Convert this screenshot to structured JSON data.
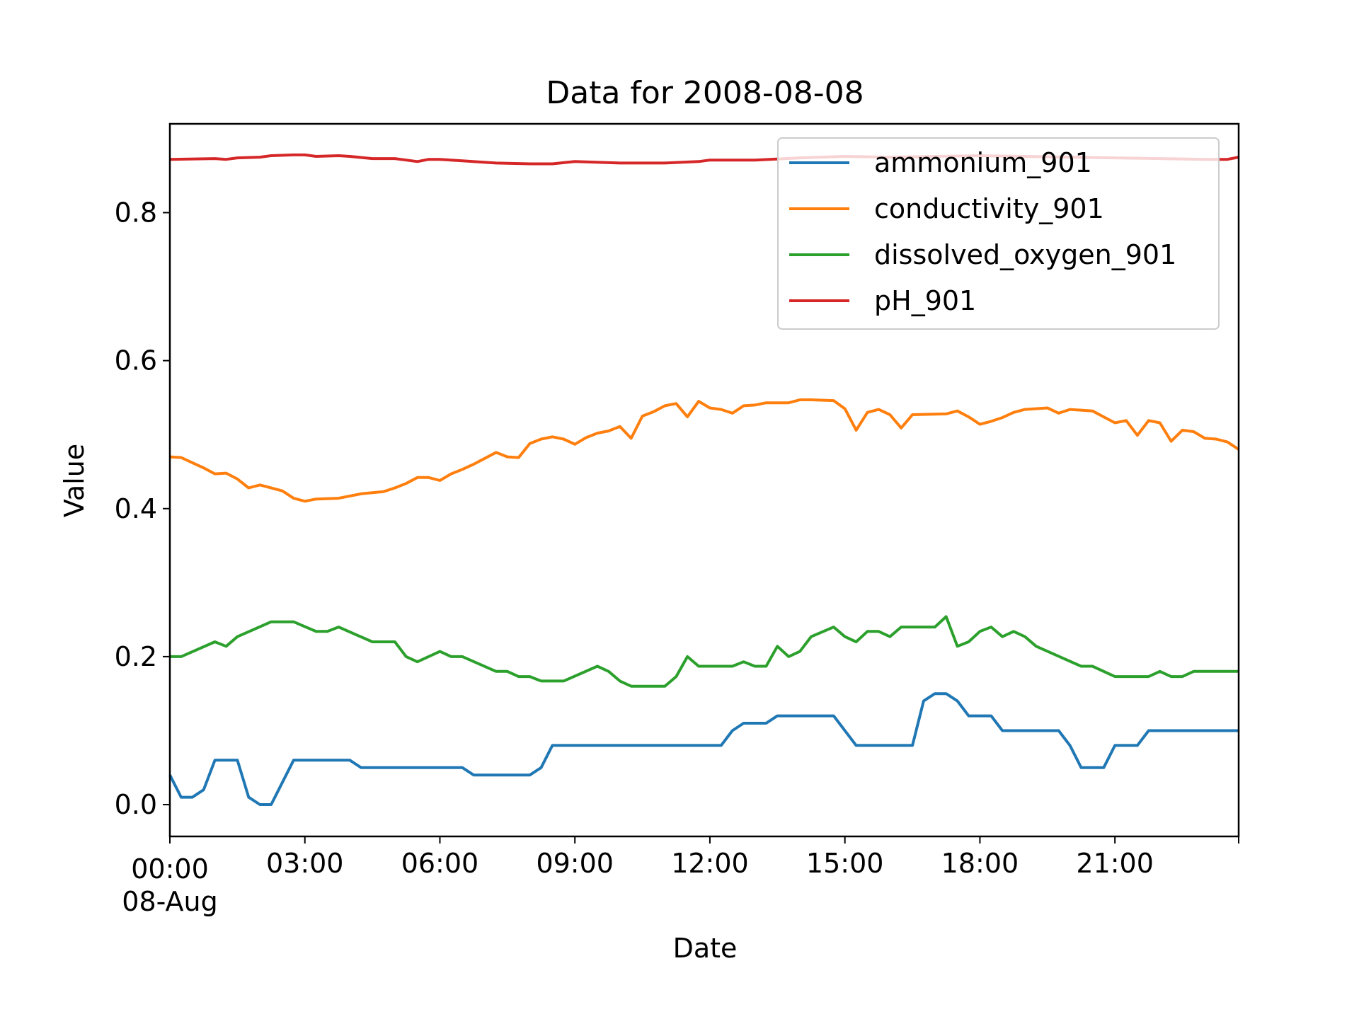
{
  "chart_data": {
    "type": "line",
    "title": "Data for 2008-08-08",
    "xlabel": "Date",
    "ylabel": "Value",
    "x_axis": {
      "kind": "time",
      "start": "2008-08-08 00:00",
      "end": "2008-08-08 23:45",
      "step_minutes": 15
    },
    "xlim": [
      "2008-08-08 00:00",
      "2008-08-08 23:45"
    ],
    "ylim": [
      -0.043,
      0.92
    ],
    "x_ticks": [
      {
        "time": "2008-08-08 00:00",
        "label": "00:00",
        "sublabel": "08-Aug"
      },
      {
        "time": "2008-08-08 03:00",
        "label": "03:00"
      },
      {
        "time": "2008-08-08 06:00",
        "label": "06:00"
      },
      {
        "time": "2008-08-08 09:00",
        "label": "09:00"
      },
      {
        "time": "2008-08-08 12:00",
        "label": "12:00"
      },
      {
        "time": "2008-08-08 15:00",
        "label": "15:00"
      },
      {
        "time": "2008-08-08 18:00",
        "label": "18:00"
      },
      {
        "time": "2008-08-08 21:00",
        "label": "21:00"
      }
    ],
    "y_ticks": [
      {
        "value": 0.0,
        "label": "0.0"
      },
      {
        "value": 0.2,
        "label": "0.2"
      },
      {
        "value": 0.4,
        "label": "0.4"
      },
      {
        "value": 0.6,
        "label": "0.6"
      },
      {
        "value": 0.8,
        "label": "0.8"
      }
    ],
    "grid": false,
    "legend_position": "top-right",
    "series": [
      {
        "name": "ammonium_901",
        "color": "#1f77b4",
        "keypoints": [
          [
            "2008-08-08 00:00",
            0.04
          ],
          [
            "2008-08-08 00:15",
            0.01
          ],
          [
            "2008-08-08 00:30",
            0.01
          ],
          [
            "2008-08-08 00:45",
            0.02
          ],
          [
            "2008-08-08 01:00",
            0.06
          ],
          [
            "2008-08-08 01:30",
            0.06
          ],
          [
            "2008-08-08 01:45",
            0.01
          ],
          [
            "2008-08-08 02:00",
            0.0
          ],
          [
            "2008-08-08 02:15",
            0.0
          ],
          [
            "2008-08-08 02:45",
            0.06
          ],
          [
            "2008-08-08 04:00",
            0.06
          ],
          [
            "2008-08-08 04:15",
            0.05
          ],
          [
            "2008-08-08 06:30",
            0.05
          ],
          [
            "2008-08-08 06:45",
            0.04
          ],
          [
            "2008-08-08 08:00",
            0.04
          ],
          [
            "2008-08-08 08:15",
            0.05
          ],
          [
            "2008-08-08 08:30",
            0.08
          ],
          [
            "2008-08-08 12:15",
            0.08
          ],
          [
            "2008-08-08 12:30",
            0.1
          ],
          [
            "2008-08-08 12:45",
            0.11
          ],
          [
            "2008-08-08 13:15",
            0.11
          ],
          [
            "2008-08-08 13:30",
            0.12
          ],
          [
            "2008-08-08 14:45",
            0.12
          ],
          [
            "2008-08-08 15:15",
            0.08
          ],
          [
            "2008-08-08 16:30",
            0.08
          ],
          [
            "2008-08-08 16:45",
            0.14
          ],
          [
            "2008-08-08 17:00",
            0.15
          ],
          [
            "2008-08-08 17:15",
            0.15
          ],
          [
            "2008-08-08 17:30",
            0.14
          ],
          [
            "2008-08-08 17:45",
            0.12
          ],
          [
            "2008-08-08 18:15",
            0.12
          ],
          [
            "2008-08-08 18:30",
            0.1
          ],
          [
            "2008-08-08 19:45",
            0.1
          ],
          [
            "2008-08-08 20:00",
            0.08
          ],
          [
            "2008-08-08 20:15",
            0.05
          ],
          [
            "2008-08-08 20:45",
            0.05
          ],
          [
            "2008-08-08 21:00",
            0.08
          ],
          [
            "2008-08-08 21:30",
            0.08
          ],
          [
            "2008-08-08 21:45",
            0.1
          ],
          [
            "2008-08-08 23:45",
            0.1
          ]
        ]
      },
      {
        "name": "conductivity_901",
        "color": "#ff7f0e",
        "keypoints": [
          [
            "2008-08-08 00:00",
            0.47
          ],
          [
            "2008-08-08 00:15",
            0.469
          ],
          [
            "2008-08-08 00:30",
            0.462
          ],
          [
            "2008-08-08 00:45",
            0.455
          ],
          [
            "2008-08-08 01:00",
            0.447
          ],
          [
            "2008-08-08 01:15",
            0.448
          ],
          [
            "2008-08-08 01:30",
            0.44
          ],
          [
            "2008-08-08 01:45",
            0.428
          ],
          [
            "2008-08-08 02:00",
            0.432
          ],
          [
            "2008-08-08 02:30",
            0.424
          ],
          [
            "2008-08-08 02:45",
            0.414
          ],
          [
            "2008-08-08 03:00",
            0.41
          ],
          [
            "2008-08-08 03:15",
            0.413
          ],
          [
            "2008-08-08 03:45",
            0.414
          ],
          [
            "2008-08-08 04:15",
            0.42
          ],
          [
            "2008-08-08 04:45",
            0.423
          ],
          [
            "2008-08-08 05:00",
            0.428
          ],
          [
            "2008-08-08 05:15",
            0.434
          ],
          [
            "2008-08-08 05:30",
            0.442
          ],
          [
            "2008-08-08 05:45",
            0.442
          ],
          [
            "2008-08-08 06:00",
            0.438
          ],
          [
            "2008-08-08 06:15",
            0.447
          ],
          [
            "2008-08-08 06:30",
            0.453
          ],
          [
            "2008-08-08 06:45",
            0.46
          ],
          [
            "2008-08-08 07:00",
            0.468
          ],
          [
            "2008-08-08 07:15",
            0.476
          ],
          [
            "2008-08-08 07:30",
            0.47
          ],
          [
            "2008-08-08 07:45",
            0.469
          ],
          [
            "2008-08-08 08:00",
            0.488
          ],
          [
            "2008-08-08 08:15",
            0.494
          ],
          [
            "2008-08-08 08:30",
            0.497
          ],
          [
            "2008-08-08 08:45",
            0.494
          ],
          [
            "2008-08-08 09:00",
            0.487
          ],
          [
            "2008-08-08 09:15",
            0.496
          ],
          [
            "2008-08-08 09:30",
            0.502
          ],
          [
            "2008-08-08 09:45",
            0.505
          ],
          [
            "2008-08-08 10:00",
            0.511
          ],
          [
            "2008-08-08 10:15",
            0.495
          ],
          [
            "2008-08-08 10:30",
            0.525
          ],
          [
            "2008-08-08 10:45",
            0.531
          ],
          [
            "2008-08-08 11:00",
            0.539
          ],
          [
            "2008-08-08 11:15",
            0.542
          ],
          [
            "2008-08-08 11:30",
            0.524
          ],
          [
            "2008-08-08 11:45",
            0.545
          ],
          [
            "2008-08-08 12:00",
            0.536
          ],
          [
            "2008-08-08 12:15",
            0.534
          ],
          [
            "2008-08-08 12:30",
            0.529
          ],
          [
            "2008-08-08 12:45",
            0.539
          ],
          [
            "2008-08-08 13:00",
            0.54
          ],
          [
            "2008-08-08 13:15",
            0.543
          ],
          [
            "2008-08-08 13:45",
            0.543
          ],
          [
            "2008-08-08 14:00",
            0.547
          ],
          [
            "2008-08-08 14:15",
            0.547
          ],
          [
            "2008-08-08 14:45",
            0.546
          ],
          [
            "2008-08-08 15:00",
            0.535
          ],
          [
            "2008-08-08 15:15",
            0.506
          ],
          [
            "2008-08-08 15:30",
            0.53
          ],
          [
            "2008-08-08 15:45",
            0.534
          ],
          [
            "2008-08-08 16:00",
            0.527
          ],
          [
            "2008-08-08 16:15",
            0.509
          ],
          [
            "2008-08-08 16:30",
            0.527
          ],
          [
            "2008-08-08 17:15",
            0.528
          ],
          [
            "2008-08-08 17:30",
            0.532
          ],
          [
            "2008-08-08 17:45",
            0.524
          ],
          [
            "2008-08-08 18:00",
            0.514
          ],
          [
            "2008-08-08 18:15",
            0.518
          ],
          [
            "2008-08-08 18:30",
            0.523
          ],
          [
            "2008-08-08 18:45",
            0.53
          ],
          [
            "2008-08-08 19:00",
            0.534
          ],
          [
            "2008-08-08 19:30",
            0.536
          ],
          [
            "2008-08-08 19:45",
            0.529
          ],
          [
            "2008-08-08 20:00",
            0.534
          ],
          [
            "2008-08-08 20:30",
            0.532
          ],
          [
            "2008-08-08 20:45",
            0.524
          ],
          [
            "2008-08-08 21:00",
            0.516
          ],
          [
            "2008-08-08 21:15",
            0.519
          ],
          [
            "2008-08-08 21:30",
            0.499
          ],
          [
            "2008-08-08 21:45",
            0.519
          ],
          [
            "2008-08-08 22:00",
            0.516
          ],
          [
            "2008-08-08 22:15",
            0.491
          ],
          [
            "2008-08-08 22:30",
            0.506
          ],
          [
            "2008-08-08 22:45",
            0.504
          ],
          [
            "2008-08-08 23:00",
            0.495
          ],
          [
            "2008-08-08 23:15",
            0.494
          ],
          [
            "2008-08-08 23:30",
            0.49
          ],
          [
            "2008-08-08 23:45",
            0.48
          ]
        ]
      },
      {
        "name": "dissolved_oxygen_901",
        "color": "#2ca02c",
        "keypoints": [
          [
            "2008-08-08 00:00",
            0.2
          ],
          [
            "2008-08-08 00:15",
            0.2
          ],
          [
            "2008-08-08 01:00",
            0.22
          ],
          [
            "2008-08-08 01:15",
            0.214
          ],
          [
            "2008-08-08 01:30",
            0.227
          ],
          [
            "2008-08-08 02:15",
            0.247
          ],
          [
            "2008-08-08 02:45",
            0.247
          ],
          [
            "2008-08-08 03:15",
            0.234
          ],
          [
            "2008-08-08 03:30",
            0.234
          ],
          [
            "2008-08-08 03:45",
            0.24
          ],
          [
            "2008-08-08 04:30",
            0.22
          ],
          [
            "2008-08-08 05:00",
            0.22
          ],
          [
            "2008-08-08 05:15",
            0.2
          ],
          [
            "2008-08-08 05:30",
            0.193
          ],
          [
            "2008-08-08 06:00",
            0.207
          ],
          [
            "2008-08-08 06:15",
            0.2
          ],
          [
            "2008-08-08 06:30",
            0.2
          ],
          [
            "2008-08-08 07:15",
            0.18
          ],
          [
            "2008-08-08 07:30",
            0.18
          ],
          [
            "2008-08-08 07:45",
            0.173
          ],
          [
            "2008-08-08 08:00",
            0.173
          ],
          [
            "2008-08-08 08:15",
            0.167
          ],
          [
            "2008-08-08 08:45",
            0.167
          ],
          [
            "2008-08-08 09:30",
            0.187
          ],
          [
            "2008-08-08 09:45",
            0.18
          ],
          [
            "2008-08-08 10:00",
            0.167
          ],
          [
            "2008-08-08 10:15",
            0.16
          ],
          [
            "2008-08-08 11:00",
            0.16
          ],
          [
            "2008-08-08 11:15",
            0.173
          ],
          [
            "2008-08-08 11:30",
            0.2
          ],
          [
            "2008-08-08 11:45",
            0.187
          ],
          [
            "2008-08-08 12:30",
            0.187
          ],
          [
            "2008-08-08 12:45",
            0.193
          ],
          [
            "2008-08-08 13:00",
            0.187
          ],
          [
            "2008-08-08 13:15",
            0.187
          ],
          [
            "2008-08-08 13:30",
            0.214
          ],
          [
            "2008-08-08 13:45",
            0.2
          ],
          [
            "2008-08-08 14:00",
            0.207
          ],
          [
            "2008-08-08 14:15",
            0.227
          ],
          [
            "2008-08-08 14:45",
            0.24
          ],
          [
            "2008-08-08 15:00",
            0.227
          ],
          [
            "2008-08-08 15:15",
            0.22
          ],
          [
            "2008-08-08 15:30",
            0.234
          ],
          [
            "2008-08-08 15:45",
            0.234
          ],
          [
            "2008-08-08 16:00",
            0.227
          ],
          [
            "2008-08-08 16:15",
            0.24
          ],
          [
            "2008-08-08 17:00",
            0.24
          ],
          [
            "2008-08-08 17:15",
            0.254
          ],
          [
            "2008-08-08 17:30",
            0.214
          ],
          [
            "2008-08-08 17:45",
            0.22
          ],
          [
            "2008-08-08 18:00",
            0.234
          ],
          [
            "2008-08-08 18:15",
            0.24
          ],
          [
            "2008-08-08 18:30",
            0.227
          ],
          [
            "2008-08-08 18:45",
            0.234
          ],
          [
            "2008-08-08 19:00",
            0.227
          ],
          [
            "2008-08-08 19:15",
            0.214
          ],
          [
            "2008-08-08 20:15",
            0.187
          ],
          [
            "2008-08-08 20:30",
            0.187
          ],
          [
            "2008-08-08 21:00",
            0.173
          ],
          [
            "2008-08-08 21:45",
            0.173
          ],
          [
            "2008-08-08 22:00",
            0.18
          ],
          [
            "2008-08-08 22:15",
            0.173
          ],
          [
            "2008-08-08 22:30",
            0.173
          ],
          [
            "2008-08-08 22:45",
            0.18
          ],
          [
            "2008-08-08 23:45",
            0.18
          ]
        ]
      },
      {
        "name": "pH_901",
        "color": "#d62728",
        "keypoints": [
          [
            "2008-08-08 00:00",
            0.872
          ],
          [
            "2008-08-08 01:00",
            0.873
          ],
          [
            "2008-08-08 01:15",
            0.872
          ],
          [
            "2008-08-08 01:30",
            0.874
          ],
          [
            "2008-08-08 02:00",
            0.875
          ],
          [
            "2008-08-08 02:15",
            0.877
          ],
          [
            "2008-08-08 02:45",
            0.878
          ],
          [
            "2008-08-08 03:00",
            0.878
          ],
          [
            "2008-08-08 03:15",
            0.876
          ],
          [
            "2008-08-08 03:45",
            0.877
          ],
          [
            "2008-08-08 04:00",
            0.876
          ],
          [
            "2008-08-08 04:30",
            0.873
          ],
          [
            "2008-08-08 05:00",
            0.873
          ],
          [
            "2008-08-08 05:15",
            0.871
          ],
          [
            "2008-08-08 05:30",
            0.869
          ],
          [
            "2008-08-08 05:45",
            0.872
          ],
          [
            "2008-08-08 06:00",
            0.872
          ],
          [
            "2008-08-08 06:30",
            0.87
          ],
          [
            "2008-08-08 07:00",
            0.868
          ],
          [
            "2008-08-08 07:15",
            0.867
          ],
          [
            "2008-08-08 08:00",
            0.866
          ],
          [
            "2008-08-08 08:30",
            0.866
          ],
          [
            "2008-08-08 09:00",
            0.869
          ],
          [
            "2008-08-08 10:00",
            0.867
          ],
          [
            "2008-08-08 11:00",
            0.867
          ],
          [
            "2008-08-08 11:45",
            0.869
          ],
          [
            "2008-08-08 12:00",
            0.871
          ],
          [
            "2008-08-08 13:00",
            0.871
          ],
          [
            "2008-08-08 14:00",
            0.874
          ],
          [
            "2008-08-08 15:00",
            0.876
          ],
          [
            "2008-08-08 16:00",
            0.875
          ],
          [
            "2008-08-08 17:00",
            0.876
          ],
          [
            "2008-08-08 18:00",
            0.877
          ],
          [
            "2008-08-08 19:00",
            0.876
          ],
          [
            "2008-08-08 20:00",
            0.875
          ],
          [
            "2008-08-08 21:00",
            0.874
          ],
          [
            "2008-08-08 22:00",
            0.873
          ],
          [
            "2008-08-08 23:00",
            0.872
          ],
          [
            "2008-08-08 23:30",
            0.872
          ],
          [
            "2008-08-08 23:45",
            0.875
          ]
        ]
      }
    ]
  }
}
